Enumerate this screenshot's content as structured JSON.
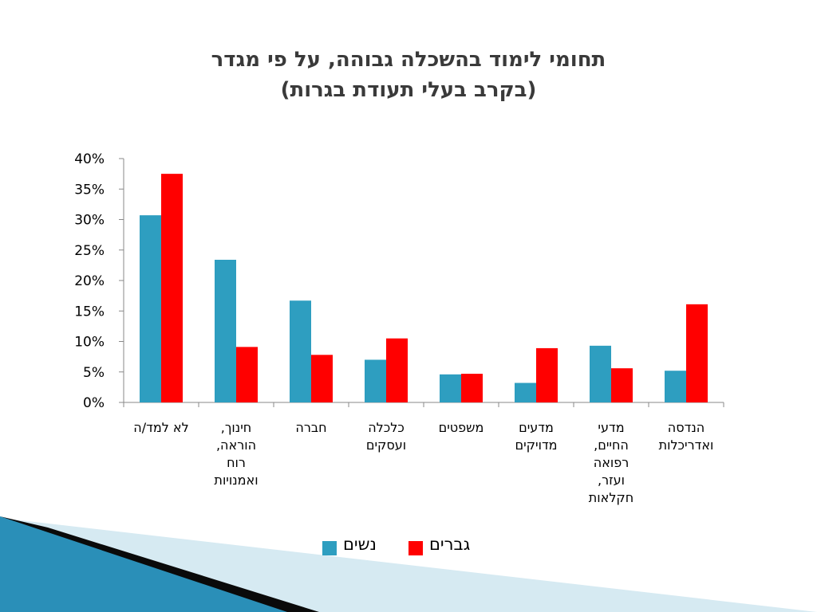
{
  "slide": {
    "title_line1": "תחומי לימוד בהשכלה גבוהה, על פי מגדר",
    "title_line2": "(בקרב בעלי תעודת בגרות)"
  },
  "colors": {
    "women": "#2E9EC0",
    "men": "#FF0000",
    "axis": "#888888",
    "deco_dark": "#0a0a0a",
    "deco_blue": "#2a8fb8",
    "deco_light": "#d6eaf2"
  },
  "chart_data": {
    "type": "bar",
    "title": "תחומי לימוד בהשכלה גבוהה, על פי מגדר (בקרב בעלי תעודת בגרות)",
    "categories": [
      "לא למד/ה",
      "חינוך, הוראה, רוח ואמנויות",
      "חברה",
      "כלכלה ועסקים",
      "משפטים",
      "מדעים מדויקים",
      "מדעי החיים, רפואה ועזר, חקלאות",
      "הנדסה ואדריכלות"
    ],
    "category_lines": [
      [
        "לא למד/ה"
      ],
      [
        "חינוך,",
        "הוראה,",
        "רוח",
        "ואמנויות"
      ],
      [
        "חברה"
      ],
      [
        "כלכלה",
        "ועסקים"
      ],
      [
        "משפטים"
      ],
      [
        "מדעים",
        "מדויקים"
      ],
      [
        "מדעי",
        "החיים,",
        "רפואה",
        "ועזר,",
        "חקלאות"
      ],
      [
        "הנדסה",
        "ואדריכלות"
      ]
    ],
    "series": [
      {
        "name": "נשים",
        "color": "#2E9EC0",
        "values": [
          30.7,
          23.4,
          16.7,
          7.0,
          4.6,
          3.2,
          9.3,
          5.2
        ]
      },
      {
        "name": "גברים",
        "color": "#FF0000",
        "values": [
          37.5,
          9.1,
          7.8,
          10.5,
          4.7,
          8.9,
          5.6,
          16.1
        ]
      }
    ],
    "ylim": [
      0,
      40
    ],
    "yticks": [
      "0%",
      "5%",
      "10%",
      "15%",
      "20%",
      "25%",
      "30%",
      "35%",
      "40%"
    ],
    "ytick_values": [
      0,
      5,
      10,
      15,
      20,
      25,
      30,
      35,
      40
    ],
    "grid": false,
    "legend_position": "bottom"
  }
}
